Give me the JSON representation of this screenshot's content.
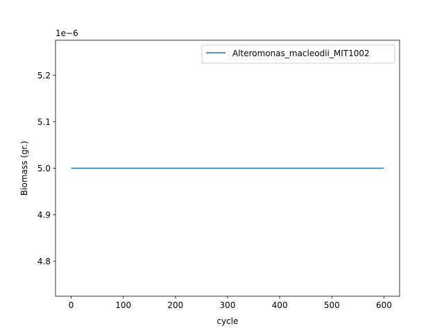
{
  "chart_data": {
    "type": "line",
    "title": "",
    "xlabel": "cycle",
    "ylabel": "Biomass (gr.)",
    "offset_label": "1e−6",
    "xlim": [
      -30,
      630
    ],
    "ylim": [
      4.725,
      5.275
    ],
    "x_ticks": [
      0,
      100,
      200,
      300,
      400,
      500,
      600
    ],
    "x_tick_labels": [
      "0",
      "100",
      "200",
      "300",
      "400",
      "500",
      "600"
    ],
    "y_ticks": [
      4.8,
      4.9,
      5.0,
      5.1,
      5.2
    ],
    "y_tick_labels": [
      "4.8",
      "4.9",
      "5.0",
      "5.1",
      "5.2"
    ],
    "grid": false,
    "legend_position": "top-right",
    "series": [
      {
        "name": "Alteromonas_macleodii_MIT1002",
        "color": "#1f77b4",
        "x": [
          0,
          600
        ],
        "y": [
          5.0,
          5.0
        ]
      }
    ]
  }
}
